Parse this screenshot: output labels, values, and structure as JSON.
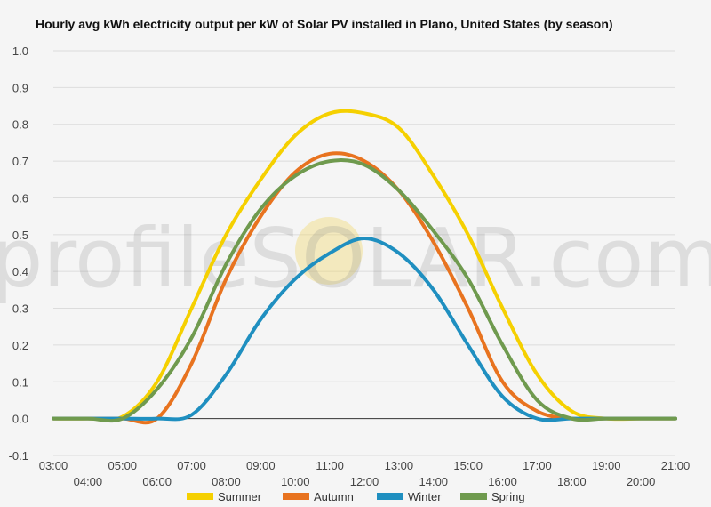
{
  "chart_data": {
    "type": "line",
    "title": "Hourly avg kWh electricity output per kW of Solar PV installed in Plano, United States (by season)",
    "xlabel": "",
    "ylabel": "",
    "ylim": [
      -0.1,
      1.0
    ],
    "xlim": [
      3,
      21
    ],
    "yticks": [
      "-0.1",
      "0.0",
      "0.1",
      "0.2",
      "0.3",
      "0.4",
      "0.5",
      "0.6",
      "0.7",
      "0.8",
      "0.9",
      "1.0"
    ],
    "ytick_values": [
      -0.1,
      0.0,
      0.1,
      0.2,
      0.3,
      0.4,
      0.5,
      0.6,
      0.7,
      0.8,
      0.9,
      1.0
    ],
    "xticks": [
      "03:00",
      "04:00",
      "05:00",
      "06:00",
      "07:00",
      "08:00",
      "09:00",
      "10:00",
      "11:00",
      "12:00",
      "13:00",
      "14:00",
      "15:00",
      "16:00",
      "17:00",
      "18:00",
      "19:00",
      "20:00",
      "21:00"
    ],
    "grid": true,
    "legend_position": "bottom",
    "x": [
      3,
      4,
      5,
      6,
      7,
      8,
      9,
      10,
      11,
      12,
      13,
      14,
      15,
      16,
      17,
      18,
      19,
      20,
      21
    ],
    "series": [
      {
        "name": "Summer",
        "color": "#f5d000",
        "values": [
          0.0,
          0.0,
          0.005,
          0.1,
          0.3,
          0.5,
          0.65,
          0.77,
          0.83,
          0.83,
          0.79,
          0.66,
          0.5,
          0.3,
          0.12,
          0.02,
          0.0,
          0.0,
          0.0
        ]
      },
      {
        "name": "Autumn",
        "color": "#e8731f",
        "values": [
          0.0,
          0.0,
          0.0,
          0.0,
          0.15,
          0.38,
          0.55,
          0.67,
          0.72,
          0.7,
          0.62,
          0.48,
          0.3,
          0.1,
          0.02,
          0.0,
          0.0,
          0.0,
          0.0
        ]
      },
      {
        "name": "Winter",
        "color": "#1f8fc0",
        "values": [
          0.0,
          0.0,
          0.0,
          0.0,
          0.01,
          0.12,
          0.27,
          0.38,
          0.45,
          0.49,
          0.45,
          0.35,
          0.2,
          0.06,
          0.0,
          0.0,
          0.0,
          0.0,
          0.0
        ]
      },
      {
        "name": "Spring",
        "color": "#6f9a4e",
        "values": [
          0.0,
          0.0,
          0.0,
          0.08,
          0.22,
          0.42,
          0.57,
          0.66,
          0.7,
          0.69,
          0.62,
          0.51,
          0.38,
          0.2,
          0.05,
          0.0,
          0.0,
          0.0,
          0.0
        ]
      }
    ]
  },
  "watermark": {
    "text": "profileSOLAR.com"
  }
}
